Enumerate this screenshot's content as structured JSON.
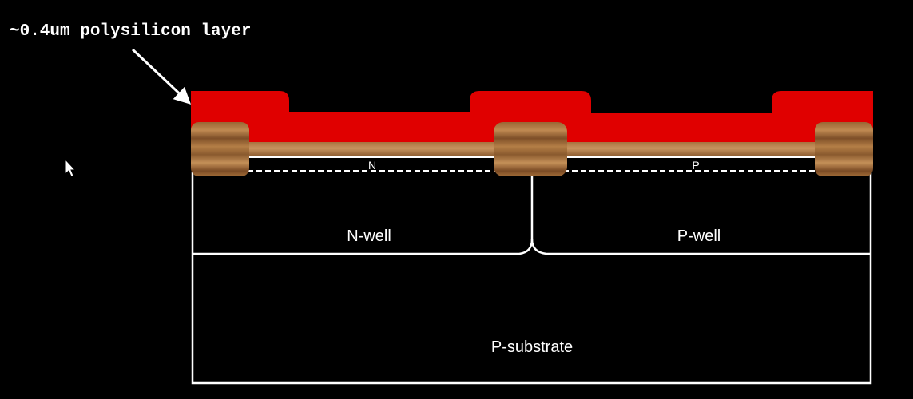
{
  "annotation": {
    "text": "~0.4um polysilicon layer"
  },
  "regions": {
    "n_diffusion": "N",
    "p_diffusion": "P",
    "n_well": "N-well",
    "p_well": "P-well",
    "substrate": "P-substrate"
  },
  "colors": {
    "background": "#000000",
    "polysilicon": "#e00000",
    "outline": "#ffffff",
    "oxide_dark": "#7a4a24",
    "oxide_light": "#b07a44",
    "text": "#ffffff"
  },
  "cursor": {
    "icon": "mouse-pointer-icon"
  }
}
